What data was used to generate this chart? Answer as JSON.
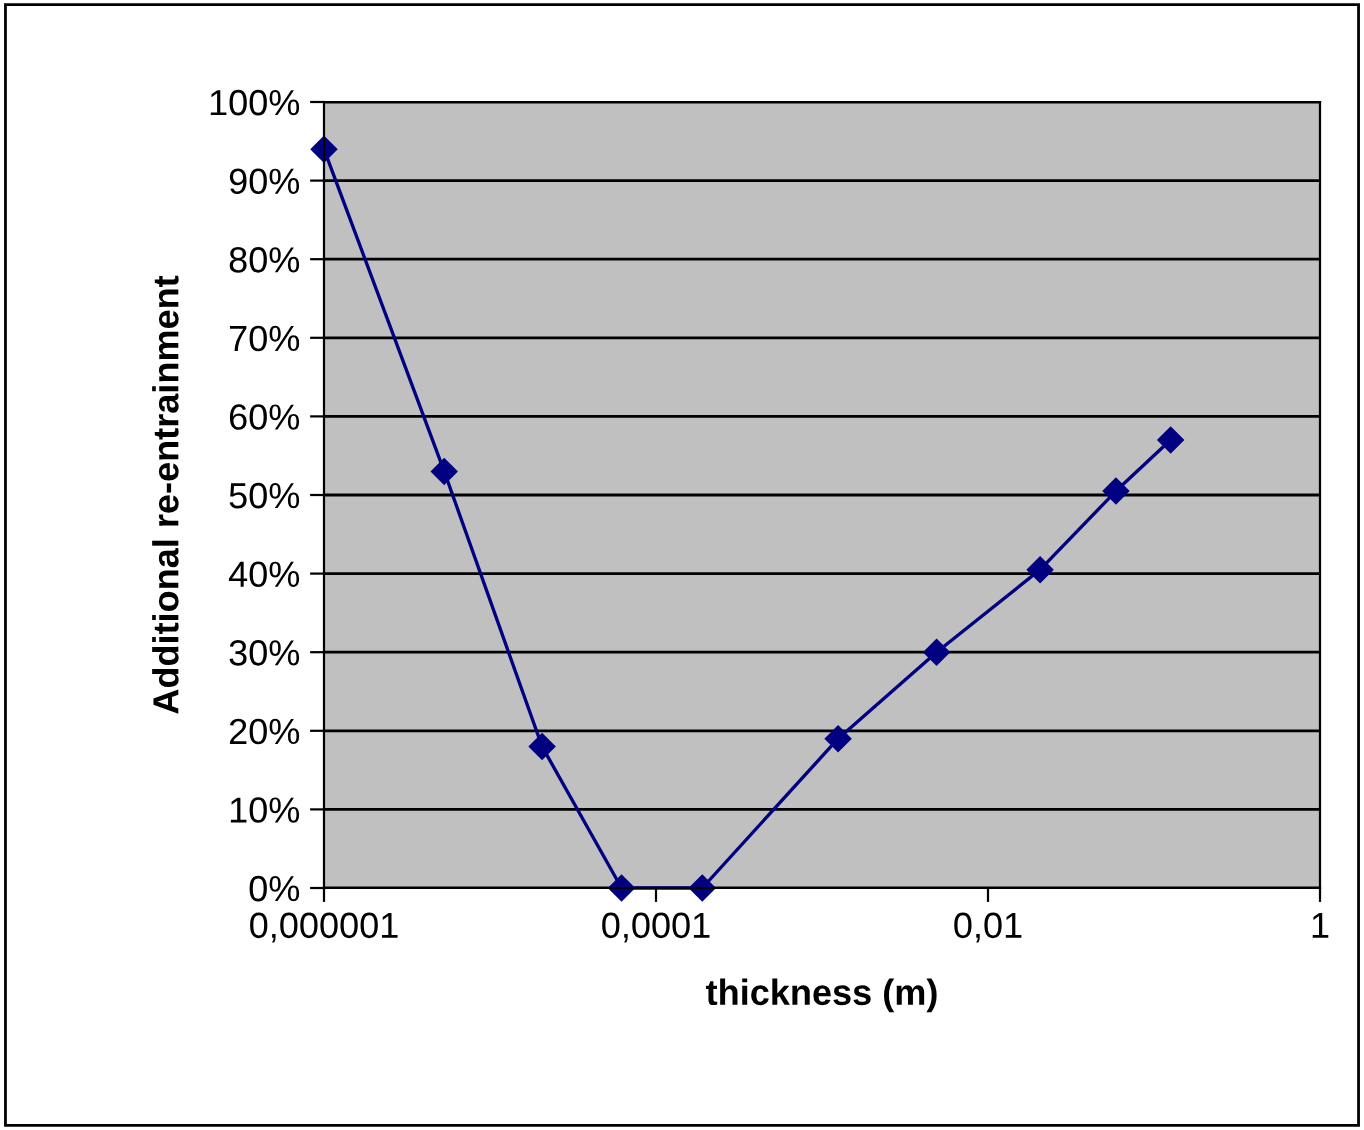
{
  "chart_data": {
    "type": "line",
    "xlabel": "thickness (m)",
    "ylabel": "Additional re-entrainment",
    "series": [
      {
        "color": "#000080",
        "x": [
          1e-06,
          5.3e-06,
          2.06e-05,
          6.2e-05,
          0.00019,
          0.00125,
          0.0049,
          0.0206,
          0.059,
          0.126
        ],
        "values": [
          94,
          53,
          18,
          0,
          0,
          19,
          30,
          40.5,
          50.5,
          57
        ]
      }
    ],
    "log": "x",
    "xlim": [
      1e-06,
      1
    ],
    "xticks": [
      {
        "value": 1e-06,
        "label": "0,000001"
      },
      {
        "value": 0.0001,
        "label": "0,0001"
      },
      {
        "value": 0.01,
        "label": "0,01"
      },
      1
    ],
    "ylim": [
      0,
      100
    ],
    "yticks": [
      {
        "value": 0,
        "label": "0%"
      },
      {
        "value": 10,
        "label": "10%"
      },
      {
        "value": 20,
        "label": "20%"
      },
      {
        "value": 30,
        "label": "30%"
      },
      {
        "value": 40,
        "label": "40%"
      },
      {
        "value": 50,
        "label": "50%"
      },
      {
        "value": 60,
        "label": "60%"
      },
      {
        "value": 70,
        "label": "70%"
      },
      {
        "value": 80,
        "label": "80%"
      },
      {
        "value": 90,
        "label": "90%"
      },
      {
        "value": 100,
        "label": "100%"
      }
    ],
    "grid": "y",
    "marker": "diamond",
    "line_style": "solid",
    "legend": false
  }
}
